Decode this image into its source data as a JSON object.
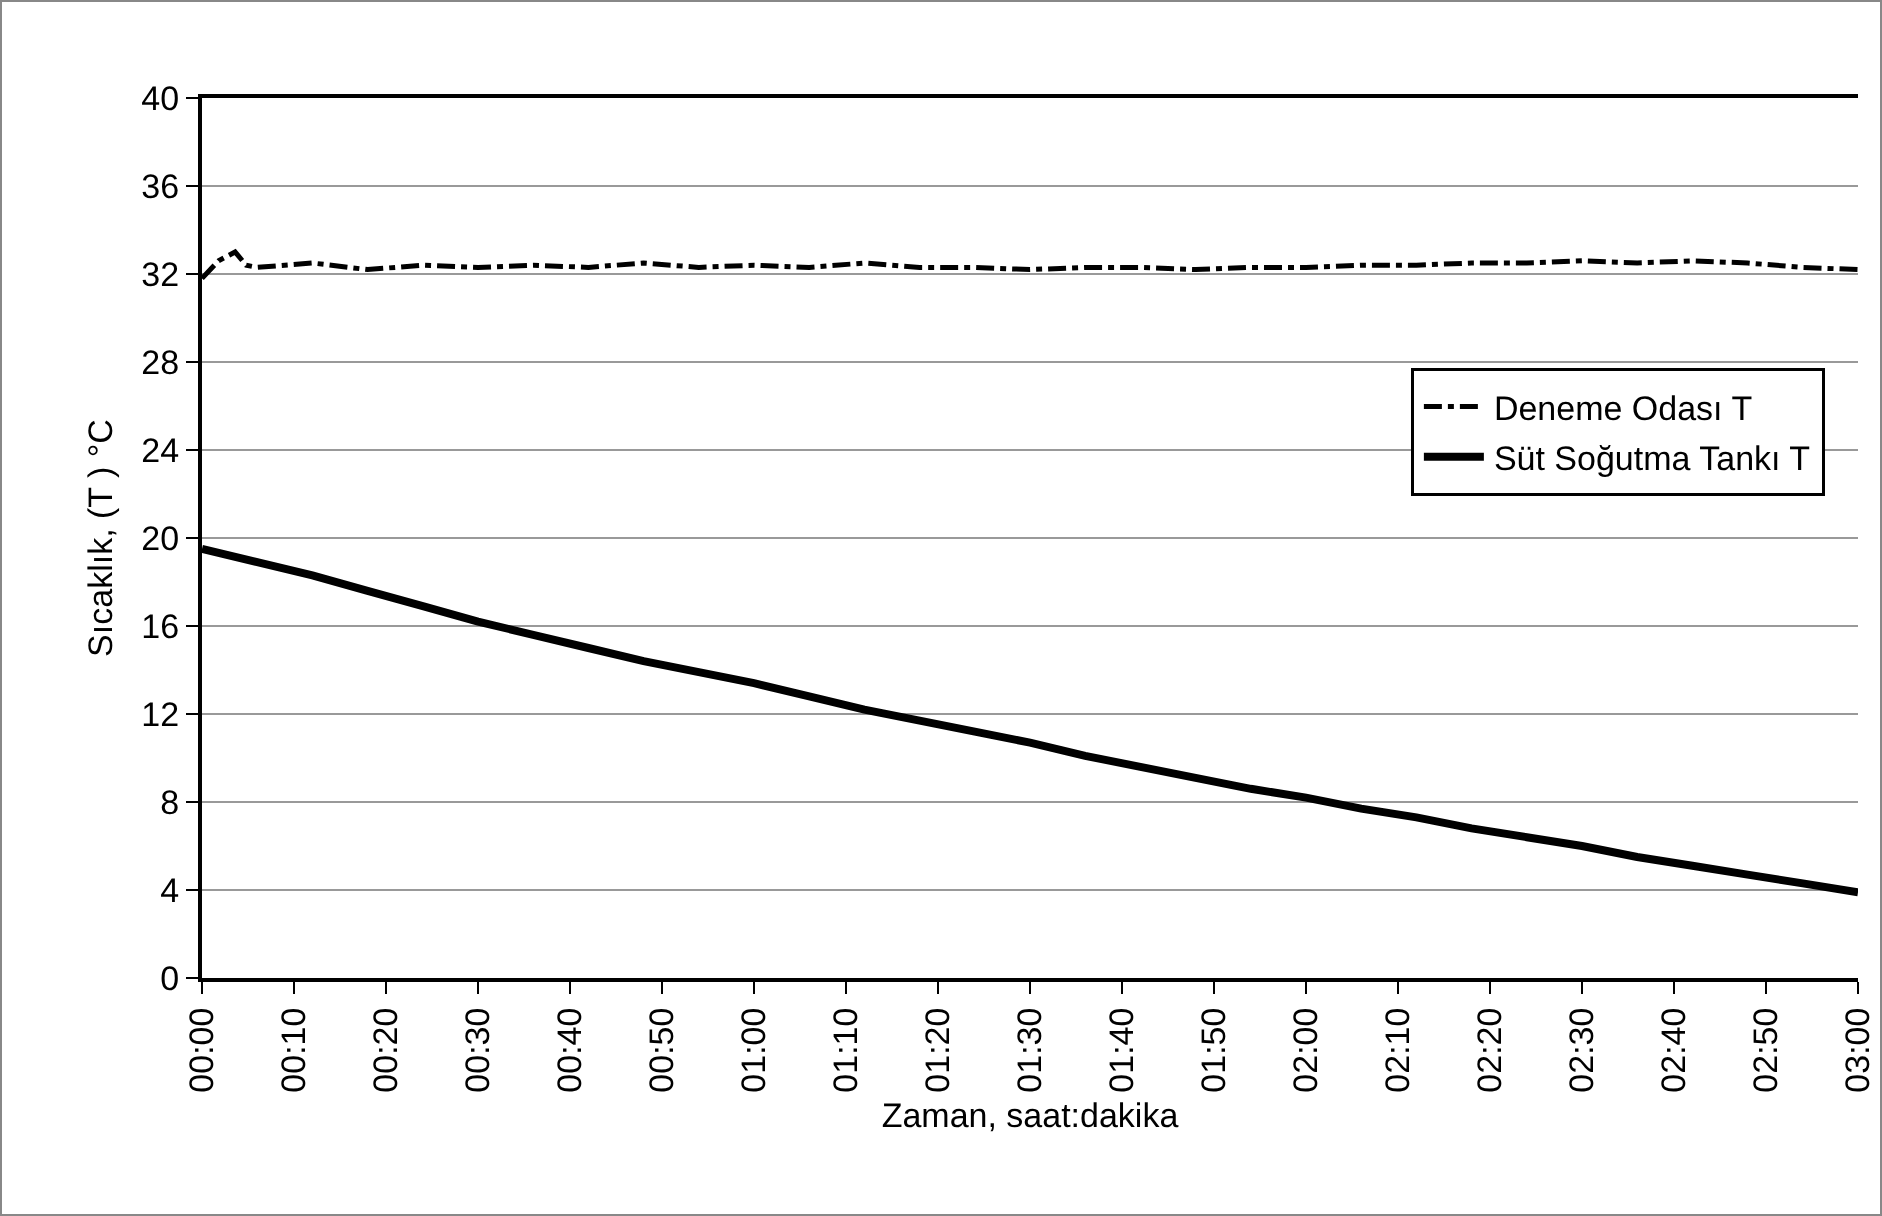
{
  "chart_data": {
    "type": "line",
    "xlabel": "Zaman, saat:dakika",
    "ylabel": "Sıcaklık, (T ) °C",
    "xlim": [
      0,
      3
    ],
    "ylim": [
      0,
      40
    ],
    "yticks": [
      0,
      4,
      8,
      12,
      16,
      20,
      24,
      28,
      32,
      36,
      40
    ],
    "xticks": [
      {
        "value": 0,
        "label": "00:00"
      },
      {
        "value": 0.1667,
        "label": "00:10"
      },
      {
        "value": 0.3333,
        "label": "00:20"
      },
      {
        "value": 0.5,
        "label": "00:30"
      },
      {
        "value": 0.6667,
        "label": "00:40"
      },
      {
        "value": 0.8333,
        "label": "00:50"
      },
      {
        "value": 1,
        "label": "01:00"
      },
      {
        "value": 1.1667,
        "label": "01:10"
      },
      {
        "value": 1.3333,
        "label": "01:20"
      },
      {
        "value": 1.5,
        "label": "01:30"
      },
      {
        "value": 1.6667,
        "label": "01:40"
      },
      {
        "value": 1.8333,
        "label": "01:50"
      },
      {
        "value": 2,
        "label": "02:00"
      },
      {
        "value": 2.1667,
        "label": "02:10"
      },
      {
        "value": 2.3333,
        "label": "02:20"
      },
      {
        "value": 2.5,
        "label": "02:30"
      },
      {
        "value": 2.6667,
        "label": "02:40"
      },
      {
        "value": 2.8333,
        "label": "02:50"
      },
      {
        "value": 3,
        "label": "03:00"
      }
    ],
    "grid": "y",
    "legend": "right",
    "marker": "none",
    "series": [
      {
        "name": "Deneme Odası T",
        "color": "#000000",
        "line_style": "dashdot",
        "x": [
          0,
          0.03,
          0.06,
          0.08,
          0.1,
          0.2,
          0.3,
          0.4,
          0.5,
          0.6,
          0.7,
          0.8,
          0.9,
          1.0,
          1.1,
          1.2,
          1.3,
          1.4,
          1.5,
          1.6,
          1.7,
          1.8,
          1.9,
          2.0,
          2.1,
          2.2,
          2.3,
          2.4,
          2.5,
          2.6,
          2.7,
          2.8,
          2.9,
          3.0
        ],
        "values": [
          31.8,
          32.6,
          33.0,
          32.4,
          32.3,
          32.5,
          32.2,
          32.4,
          32.3,
          32.4,
          32.3,
          32.5,
          32.3,
          32.4,
          32.3,
          32.5,
          32.3,
          32.3,
          32.2,
          32.3,
          32.3,
          32.2,
          32.3,
          32.3,
          32.4,
          32.4,
          32.5,
          32.5,
          32.6,
          32.5,
          32.6,
          32.5,
          32.3,
          32.2
        ]
      },
      {
        "name": "Süt Soğutma Tankı T",
        "color": "#000000",
        "line_style": "solid",
        "x": [
          0,
          0.1,
          0.2,
          0.3,
          0.4,
          0.5,
          0.6,
          0.7,
          0.8,
          0.9,
          1.0,
          1.1,
          1.2,
          1.3,
          1.4,
          1.5,
          1.6,
          1.7,
          1.8,
          1.9,
          2.0,
          2.1,
          2.2,
          2.3,
          2.4,
          2.5,
          2.6,
          2.7,
          2.8,
          2.9,
          3.0
        ],
        "values": [
          19.5,
          18.9,
          18.3,
          17.6,
          16.9,
          16.2,
          15.6,
          15.0,
          14.4,
          13.9,
          13.4,
          12.8,
          12.2,
          11.7,
          11.2,
          10.7,
          10.1,
          9.6,
          9.1,
          8.6,
          8.2,
          7.7,
          7.3,
          6.8,
          6.4,
          6.0,
          5.5,
          5.1,
          4.7,
          4.3,
          3.9
        ]
      }
    ]
  }
}
